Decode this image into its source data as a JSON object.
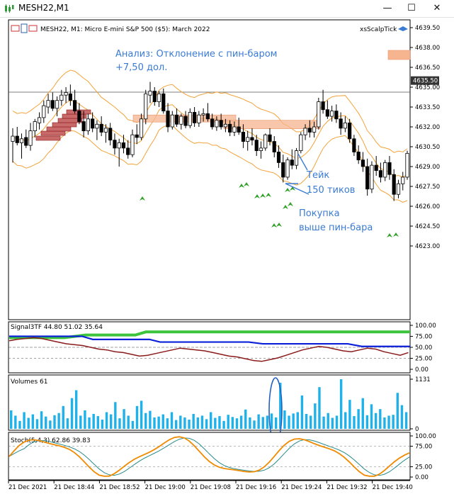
{
  "window": {
    "title": "MESH22,M1",
    "minimize": "—",
    "maximize": "☐",
    "close": "✕"
  },
  "main": {
    "header": "MESH22, M1:  Micro E-mini S&P 500 ($5): March 2022",
    "indicator_label": "xsScalpTick",
    "analysis_line1": "Анализ: Отклонение с пин-баром",
    "analysis_line2": "+7,50 дол.",
    "take_line1": "Тейк",
    "take_line2": "150 тиков",
    "buy_line1": "Покупка",
    "buy_line2": "выше пин-бара",
    "price_ticks": [
      "4639.50",
      "4638.00",
      "4636.50",
      "4635.00",
      "4633.50",
      "4632.00",
      "4630.50",
      "4629.00",
      "4627.50",
      "4626.00",
      "4624.50",
      "4623.00"
    ],
    "current_price": "4635.50"
  },
  "signal": {
    "label": "Signal3TF 44.80 51.02 35.64",
    "ticks": [
      "100.00",
      "75.00",
      "50.00",
      "25.00",
      "0.00"
    ]
  },
  "volumes": {
    "label": "Volumes 61",
    "ticks": [
      "1131",
      "0"
    ]
  },
  "stoch": {
    "label": "Stoch(5,4,3) 62.86 39.83",
    "ticks": [
      "100.00",
      "75.00",
      "25.00",
      "0.00"
    ]
  },
  "time_axis": [
    "21 Dec 2021",
    "21 Dec 18:44",
    "21 Dec 18:52",
    "21 Dec 19:00",
    "21 Dec 19:08",
    "21 Dec 19:16",
    "21 Dec 19:24",
    "21 Dec 19:32",
    "21 Dec 19:40"
  ],
  "colors": {
    "bull": "#ffffff",
    "bear": "#000000",
    "band": "#f2a33a",
    "zone": "#f6b48f",
    "arrow": "#33a02c",
    "annot": "#3a7bd5",
    "volume": "#1fb2ea",
    "signal_green": "#3cc43c",
    "signal_blue": "#0b20d8",
    "signal_red": "#8b1a1a",
    "stoch_main": "#f08a00",
    "stoch_sig": "#2a8a8a",
    "ellipse": "#2060c0"
  }
}
